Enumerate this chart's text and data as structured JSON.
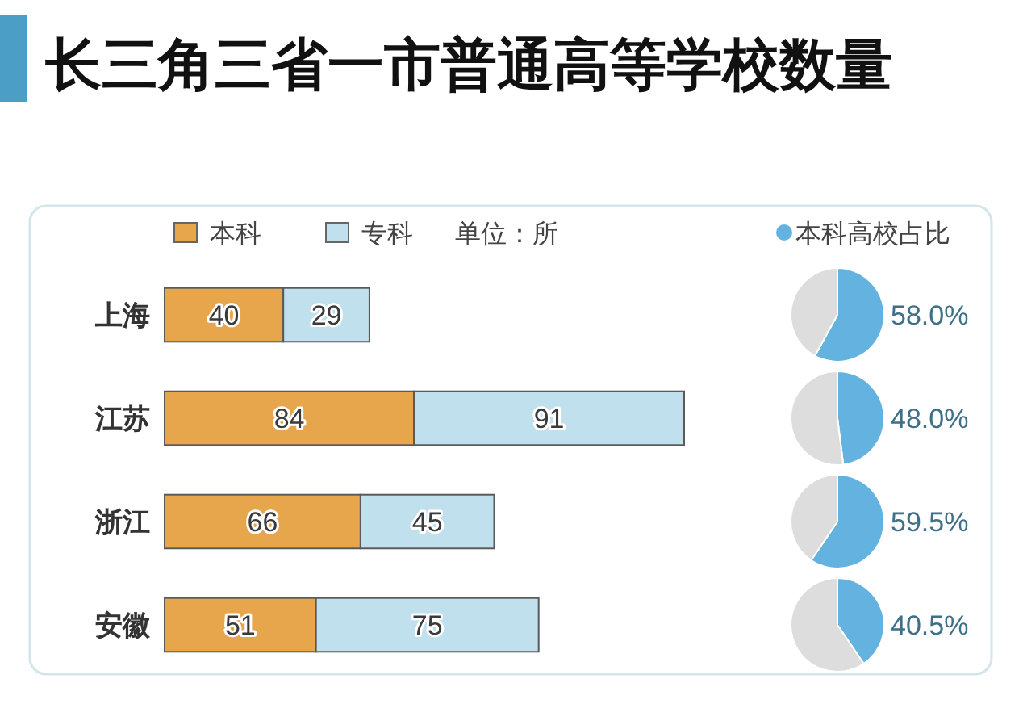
{
  "chart_data": [
    {
      "type": "bar",
      "title": "长三角三省一市普通高等学校数量",
      "orientation": "horizontal",
      "stacked": true,
      "categories": [
        "上海",
        "江苏",
        "浙江",
        "安徽"
      ],
      "series": [
        {
          "name": "本科",
          "color": "#e7a64c",
          "values": [
            40,
            84,
            66,
            51
          ]
        },
        {
          "name": "专科",
          "color": "#bfe0ec",
          "values": [
            29,
            91,
            45,
            75
          ]
        }
      ],
      "tick_labels": "y",
      "data_labels": true,
      "legend": "top",
      "annotations": [
        "单位：所"
      ]
    },
    {
      "type": "pie",
      "categories": [
        "本科高校占比",
        null
      ],
      "values": [
        58.0,
        42.0
      ],
      "colors": [
        "#63b2df",
        "#dddddd"
      ],
      "value_labels": [
        "58.0%",
        null
      ],
      "legend": "top"
    },
    {
      "type": "pie",
      "categories": [
        null,
        null
      ],
      "values": [
        48.0,
        52.0
      ],
      "colors": [
        "#63b2df",
        "#dddddd"
      ],
      "value_labels": [
        "48.0%",
        null
      ]
    },
    {
      "type": "pie",
      "categories": [
        null,
        null
      ],
      "values": [
        59.5,
        40.5
      ],
      "colors": [
        "#63b2df",
        "#dddddd"
      ],
      "value_labels": [
        "59.5%",
        null
      ]
    },
    {
      "type": "pie",
      "categories": [
        null,
        null
      ],
      "values": [
        40.5,
        59.5
      ],
      "colors": [
        "#63b2df",
        "#dddddd"
      ],
      "value_labels": [
        "40.5%",
        null
      ]
    }
  ]
}
